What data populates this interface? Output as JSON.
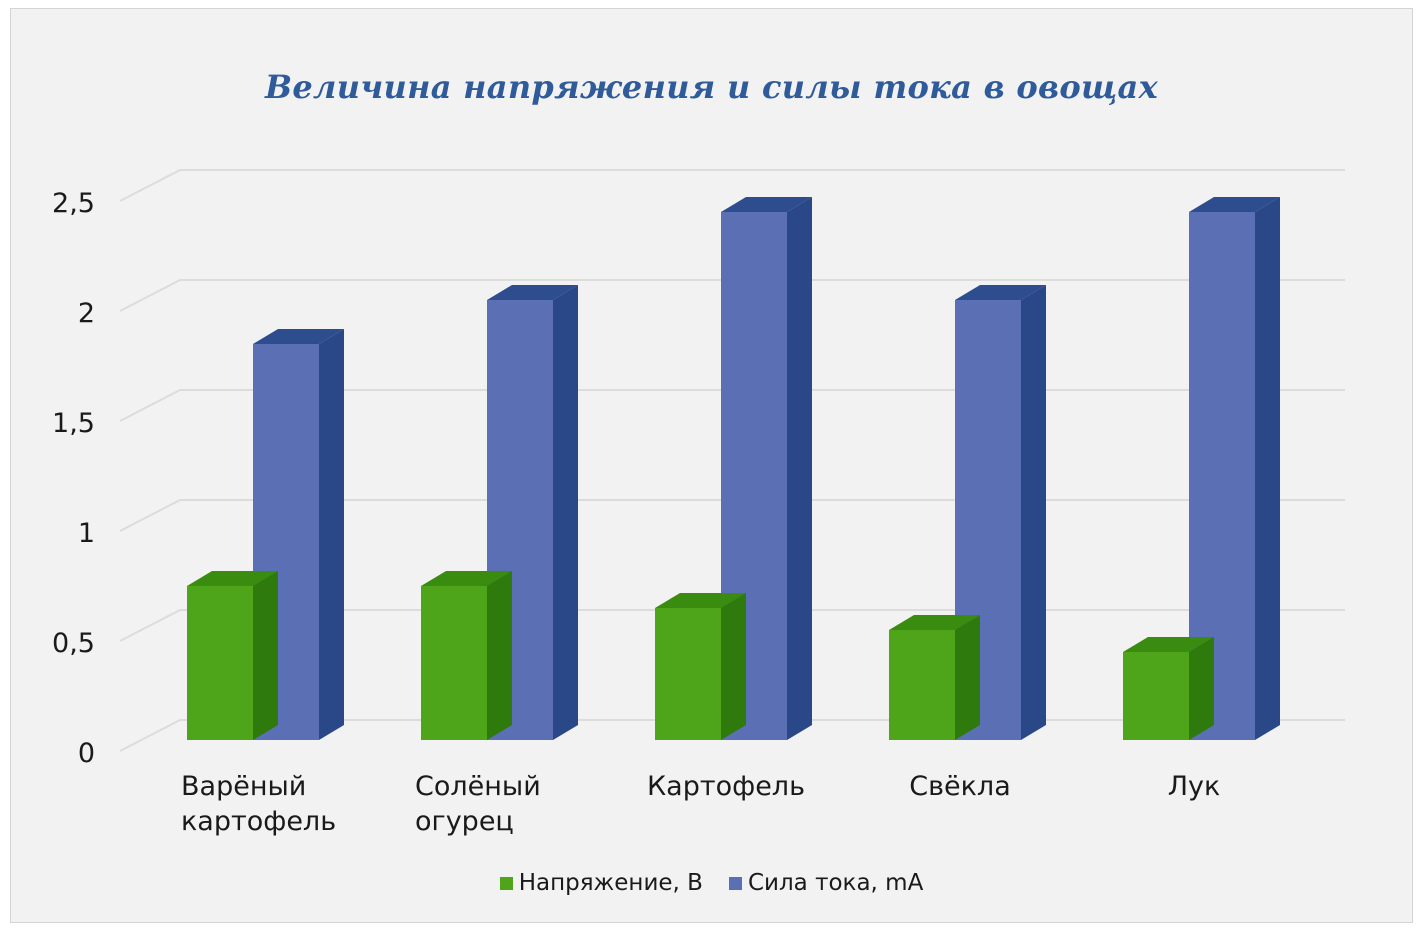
{
  "chart_data": {
    "type": "bar",
    "title": "Величина напряжения и силы тока в овощах",
    "categories": [
      [
        "Варёный",
        "картофель"
      ],
      [
        "Солёный",
        "огурец"
      ],
      [
        "Картофель"
      ],
      [
        "Свёкла"
      ],
      [
        "Лук"
      ]
    ],
    "series": [
      {
        "name": "Напряжение, В",
        "values": [
          0.7,
          0.7,
          0.6,
          0.5,
          0.4
        ],
        "color": "#4ea51a",
        "top_color": "#3a8c10",
        "side_color": "#2f7a0c"
      },
      {
        "name": "Сила тока, mA",
        "values": [
          1.8,
          2.0,
          2.4,
          2.0,
          2.4
        ],
        "color": "#5b6fb5",
        "top_color": "#2e4d8f",
        "side_color": "#2a4788"
      }
    ],
    "y_ticks": [
      "0",
      "0,5",
      "1",
      "1,5",
      "2",
      "2,5"
    ],
    "ylim": [
      0,
      2.5
    ],
    "grid": true,
    "legend_position": "bottom",
    "style": "3d-clustered-column"
  }
}
